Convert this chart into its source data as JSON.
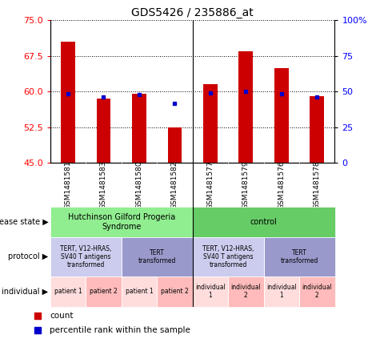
{
  "title": "GDS5426 / 235886_at",
  "samples": [
    "GSM1481581",
    "GSM1481583",
    "GSM1481580",
    "GSM1481582",
    "GSM1481577",
    "GSM1481579",
    "GSM1481576",
    "GSM1481578"
  ],
  "count_values": [
    70.5,
    58.5,
    59.5,
    52.5,
    61.5,
    68.5,
    65.0,
    59.0
  ],
  "percentile_values": [
    59.5,
    58.8,
    59.3,
    57.5,
    59.7,
    60.0,
    59.5,
    58.8
  ],
  "y_min": 45,
  "y_max": 75,
  "y_ticks_left": [
    45,
    52.5,
    60,
    67.5,
    75
  ],
  "y_ticks_right": [
    0,
    25,
    50,
    75,
    100
  ],
  "right_y_labels": [
    "0",
    "25",
    "50",
    "75",
    "100%"
  ],
  "disease_state_groups": [
    {
      "label": "Hutchinson Gilford Progeria\nSyndrome",
      "start": 0,
      "end": 4,
      "color": "#90ee90"
    },
    {
      "label": "control",
      "start": 4,
      "end": 8,
      "color": "#66cc66"
    }
  ],
  "protocol_groups": [
    {
      "label": "TERT, V12-HRAS,\nSV40 T antigens\ntransformed",
      "start": 0,
      "end": 2,
      "color": "#ccccee"
    },
    {
      "label": "TERT\ntransformed",
      "start": 2,
      "end": 4,
      "color": "#9999cc"
    },
    {
      "label": "TERT, V12-HRAS,\nSV40 T antigens\ntransformed",
      "start": 4,
      "end": 6,
      "color": "#ccccee"
    },
    {
      "label": "TERT\ntransformed",
      "start": 6,
      "end": 8,
      "color": "#9999cc"
    }
  ],
  "individual_groups": [
    {
      "label": "patient 1",
      "start": 0,
      "end": 1,
      "color": "#ffdddd"
    },
    {
      "label": "patient 2",
      "start": 1,
      "end": 2,
      "color": "#ffbbbb"
    },
    {
      "label": "patient 1",
      "start": 2,
      "end": 3,
      "color": "#ffdddd"
    },
    {
      "label": "patient 2",
      "start": 3,
      "end": 4,
      "color": "#ffbbbb"
    },
    {
      "label": "individual\n1",
      "start": 4,
      "end": 5,
      "color": "#ffdddd"
    },
    {
      "label": "individual\n2",
      "start": 5,
      "end": 6,
      "color": "#ffbbbb"
    },
    {
      "label": "individual\n1",
      "start": 6,
      "end": 7,
      "color": "#ffdddd"
    },
    {
      "label": "individual\n2",
      "start": 7,
      "end": 8,
      "color": "#ffbbbb"
    }
  ],
  "bar_color": "#cc0000",
  "dot_color": "#0000cc",
  "sample_bg": "#cccccc",
  "legend_count_color": "#cc0000",
  "legend_dot_color": "#0000cc"
}
